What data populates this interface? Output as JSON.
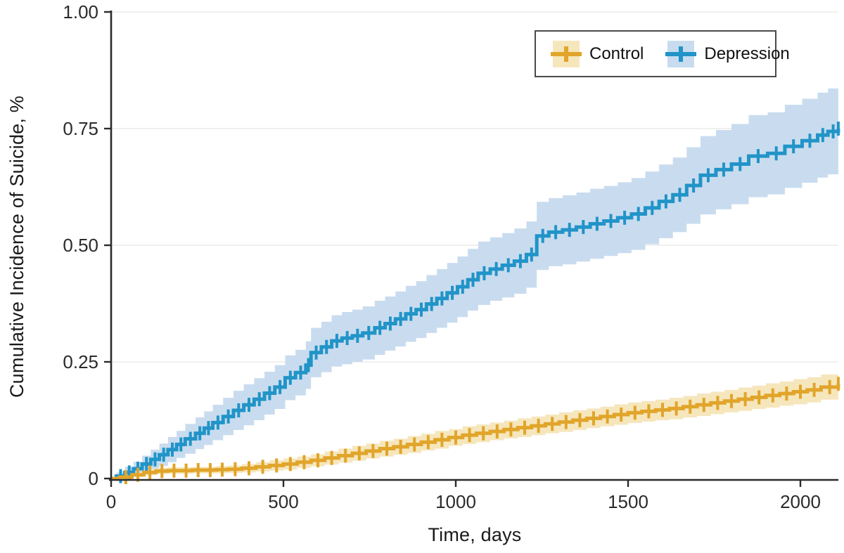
{
  "colors": {
    "axis": "#2b2b2b",
    "grid": "#ebebe9",
    "tick_text": "#2b2b2b",
    "legend_border": "#4a4a4a",
    "background": "#ffffff",
    "control_line": "#e1a52b",
    "control_band": "#f6e6bc",
    "depression_line": "#2194c8",
    "depression_band": "#c9dcef"
  },
  "chart_data": {
    "type": "line",
    "subtype": "cumulative-incidence-step-with-ci",
    "title": "",
    "xlabel": "Time, days",
    "ylabel": "Cumulative Incidence of Suicide, %",
    "xlim": [
      0,
      2110
    ],
    "ylim": [
      0,
      1.0
    ],
    "grid": "horizontal",
    "x_axis": {
      "tick_labels": [
        "0",
        "500",
        "1000",
        "1500",
        "2000"
      ],
      "tick_values": [
        0,
        500,
        1000,
        1500,
        2000
      ]
    },
    "y_axis": {
      "tick_labels": [
        "1.00",
        "0.75",
        "0.50",
        "0.25",
        "0"
      ],
      "tick_values": [
        1.0,
        0.75,
        0.5,
        0.25,
        0
      ]
    },
    "legend": {
      "position": "top-right",
      "items": [
        "Control",
        "Depression"
      ]
    },
    "series": [
      {
        "name": "Control",
        "color": "#e1a52b",
        "band_color": "#f6e6bc",
        "points": [
          [
            0,
            0,
            0,
            0
          ],
          [
            25,
            0.003,
            0,
            0.007
          ],
          [
            60,
            0.008,
            0.003,
            0.013
          ],
          [
            95,
            0.013,
            0.007,
            0.019
          ],
          [
            130,
            0.016,
            0.009,
            0.023
          ],
          [
            165,
            0.017,
            0.01,
            0.024
          ],
          [
            200,
            0.017,
            0.01,
            0.024
          ],
          [
            235,
            0.018,
            0.011,
            0.025
          ],
          [
            270,
            0.018,
            0.011,
            0.025
          ],
          [
            305,
            0.019,
            0.011,
            0.027
          ],
          [
            340,
            0.02,
            0.012,
            0.028
          ],
          [
            380,
            0.022,
            0.013,
            0.031
          ],
          [
            420,
            0.025,
            0.015,
            0.035
          ],
          [
            460,
            0.028,
            0.017,
            0.039
          ],
          [
            500,
            0.031,
            0.019,
            0.043
          ],
          [
            540,
            0.035,
            0.023,
            0.047
          ],
          [
            580,
            0.039,
            0.026,
            0.052
          ],
          [
            620,
            0.044,
            0.03,
            0.058
          ],
          [
            660,
            0.049,
            0.034,
            0.064
          ],
          [
            700,
            0.054,
            0.038,
            0.07
          ],
          [
            740,
            0.059,
            0.043,
            0.075
          ],
          [
            780,
            0.064,
            0.047,
            0.081
          ],
          [
            820,
            0.068,
            0.051,
            0.085
          ],
          [
            860,
            0.073,
            0.055,
            0.091
          ],
          [
            900,
            0.078,
            0.06,
            0.096
          ],
          [
            940,
            0.083,
            0.064,
            0.102
          ],
          [
            980,
            0.088,
            0.07,
            0.106
          ],
          [
            1020,
            0.093,
            0.074,
            0.112
          ],
          [
            1060,
            0.097,
            0.078,
            0.116
          ],
          [
            1100,
            0.101,
            0.082,
            0.12
          ],
          [
            1140,
            0.105,
            0.086,
            0.124
          ],
          [
            1180,
            0.109,
            0.089,
            0.129
          ],
          [
            1220,
            0.113,
            0.093,
            0.133
          ],
          [
            1260,
            0.117,
            0.097,
            0.137
          ],
          [
            1300,
            0.121,
            0.1,
            0.142
          ],
          [
            1340,
            0.125,
            0.104,
            0.146
          ],
          [
            1380,
            0.129,
            0.108,
            0.15
          ],
          [
            1420,
            0.133,
            0.112,
            0.154
          ],
          [
            1460,
            0.137,
            0.115,
            0.159
          ],
          [
            1500,
            0.141,
            0.119,
            0.163
          ],
          [
            1540,
            0.144,
            0.122,
            0.166
          ],
          [
            1580,
            0.147,
            0.125,
            0.169
          ],
          [
            1620,
            0.15,
            0.127,
            0.173
          ],
          [
            1660,
            0.154,
            0.131,
            0.177
          ],
          [
            1700,
            0.158,
            0.134,
            0.182
          ],
          [
            1740,
            0.162,
            0.138,
            0.186
          ],
          [
            1780,
            0.166,
            0.142,
            0.19
          ],
          [
            1820,
            0.17,
            0.145,
            0.195
          ],
          [
            1860,
            0.174,
            0.149,
            0.199
          ],
          [
            1900,
            0.178,
            0.152,
            0.204
          ],
          [
            1940,
            0.182,
            0.156,
            0.208
          ],
          [
            1980,
            0.186,
            0.159,
            0.213
          ],
          [
            2020,
            0.19,
            0.163,
            0.217
          ],
          [
            2060,
            0.196,
            0.169,
            0.223
          ],
          [
            2110,
            0.203,
            0.176,
            0.23
          ]
        ]
      },
      {
        "name": "Depression",
        "color": "#2194c8",
        "band_color": "#c9dcef",
        "points": [
          [
            0,
            0,
            0,
            0
          ],
          [
            15,
            0.005,
            0,
            0.013
          ],
          [
            40,
            0.013,
            0.001,
            0.025
          ],
          [
            65,
            0.021,
            0.006,
            0.036
          ],
          [
            90,
            0.031,
            0.013,
            0.049
          ],
          [
            115,
            0.041,
            0.02,
            0.062
          ],
          [
            140,
            0.051,
            0.027,
            0.075
          ],
          [
            165,
            0.062,
            0.035,
            0.089
          ],
          [
            190,
            0.073,
            0.044,
            0.102
          ],
          [
            215,
            0.085,
            0.053,
            0.117
          ],
          [
            245,
            0.097,
            0.063,
            0.131
          ],
          [
            270,
            0.108,
            0.072,
            0.144
          ],
          [
            295,
            0.12,
            0.082,
            0.158
          ],
          [
            325,
            0.133,
            0.093,
            0.173
          ],
          [
            355,
            0.146,
            0.104,
            0.188
          ],
          [
            385,
            0.158,
            0.114,
            0.202
          ],
          [
            415,
            0.17,
            0.125,
            0.215
          ],
          [
            445,
            0.183,
            0.137,
            0.229
          ],
          [
            475,
            0.196,
            0.149,
            0.243
          ],
          [
            505,
            0.216,
            0.168,
            0.264
          ],
          [
            535,
            0.227,
            0.178,
            0.276
          ],
          [
            565,
            0.243,
            0.192,
            0.294
          ],
          [
            580,
            0.27,
            0.217,
            0.323
          ],
          [
            610,
            0.282,
            0.228,
            0.336
          ],
          [
            640,
            0.295,
            0.24,
            0.35
          ],
          [
            670,
            0.301,
            0.245,
            0.357
          ],
          [
            700,
            0.306,
            0.25,
            0.362
          ],
          [
            730,
            0.312,
            0.255,
            0.369
          ],
          [
            765,
            0.323,
            0.265,
            0.381
          ],
          [
            795,
            0.332,
            0.274,
            0.39
          ],
          [
            825,
            0.342,
            0.283,
            0.401
          ],
          [
            855,
            0.353,
            0.293,
            0.413
          ],
          [
            885,
            0.362,
            0.301,
            0.423
          ],
          [
            915,
            0.374,
            0.312,
            0.436
          ],
          [
            945,
            0.386,
            0.323,
            0.449
          ],
          [
            975,
            0.398,
            0.334,
            0.462
          ],
          [
            1005,
            0.411,
            0.346,
            0.476
          ],
          [
            1035,
            0.426,
            0.36,
            0.492
          ],
          [
            1065,
            0.44,
            0.372,
            0.508
          ],
          [
            1100,
            0.449,
            0.381,
            0.517
          ],
          [
            1135,
            0.457,
            0.388,
            0.526
          ],
          [
            1170,
            0.466,
            0.396,
            0.536
          ],
          [
            1205,
            0.48,
            0.409,
            0.551
          ],
          [
            1235,
            0.52,
            0.447,
            0.593
          ],
          [
            1270,
            0.528,
            0.455,
            0.601
          ],
          [
            1310,
            0.533,
            0.459,
            0.607
          ],
          [
            1350,
            0.539,
            0.465,
            0.613
          ],
          [
            1390,
            0.546,
            0.471,
            0.621
          ],
          [
            1430,
            0.552,
            0.477,
            0.627
          ],
          [
            1470,
            0.559,
            0.483,
            0.635
          ],
          [
            1510,
            0.567,
            0.49,
            0.644
          ],
          [
            1550,
            0.58,
            0.502,
            0.658
          ],
          [
            1590,
            0.594,
            0.515,
            0.673
          ],
          [
            1630,
            0.608,
            0.528,
            0.688
          ],
          [
            1670,
            0.628,
            0.546,
            0.71
          ],
          [
            1710,
            0.65,
            0.566,
            0.734
          ],
          [
            1755,
            0.662,
            0.577,
            0.747
          ],
          [
            1800,
            0.674,
            0.588,
            0.76
          ],
          [
            1850,
            0.691,
            0.603,
            0.779
          ],
          [
            1905,
            0.697,
            0.609,
            0.785
          ],
          [
            1955,
            0.712,
            0.623,
            0.801
          ],
          [
            2005,
            0.724,
            0.634,
            0.814
          ],
          [
            2050,
            0.736,
            0.645,
            0.827
          ],
          [
            2080,
            0.744,
            0.652,
            0.836
          ],
          [
            2110,
            0.75,
            0.658,
            0.842
          ]
        ]
      }
    ]
  }
}
